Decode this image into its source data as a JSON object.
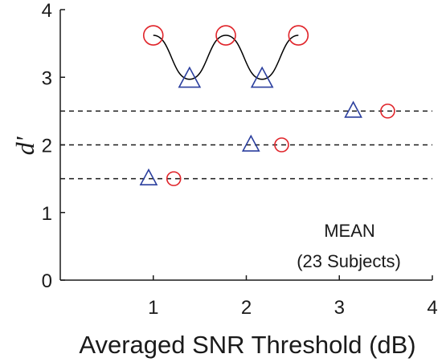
{
  "chart_data": {
    "type": "scatter",
    "title": "",
    "xlabel": "Averaged SNR Threshold (dB)",
    "ylabel": "d'",
    "xlim": [
      0,
      4
    ],
    "ylim": [
      0,
      4
    ],
    "xticks": [
      "1",
      "2",
      "3",
      "4"
    ],
    "yticks": [
      "0",
      "1",
      "2",
      "3",
      "4"
    ],
    "grid": false,
    "annotation": {
      "line1": "MEAN",
      "line2": "(23 Subjects)"
    },
    "reference_lines": [
      1.5,
      2.0,
      2.5
    ],
    "series": [
      {
        "marker": "triangle",
        "color": "#2b3f9e",
        "points": [
          {
            "x": 0.95,
            "y": 1.5
          },
          {
            "x": 2.05,
            "y": 2.0
          },
          {
            "x": 3.15,
            "y": 2.5
          }
        ]
      },
      {
        "marker": "circle",
        "color": "#e0242a",
        "points": [
          {
            "x": 1.22,
            "y": 1.5
          },
          {
            "x": 2.38,
            "y": 2.0
          },
          {
            "x": 3.52,
            "y": 2.5
          }
        ]
      }
    ],
    "legend_icon": {
      "triangles": [
        {
          "x": 1.39,
          "y": 2.97
        },
        {
          "x": 2.17,
          "y": 2.97
        }
      ],
      "circles": [
        {
          "x": 1.0,
          "y": 3.62
        },
        {
          "x": 1.78,
          "y": 3.62
        },
        {
          "x": 2.56,
          "y": 3.62
        }
      ],
      "curve_color": "#000000"
    }
  }
}
